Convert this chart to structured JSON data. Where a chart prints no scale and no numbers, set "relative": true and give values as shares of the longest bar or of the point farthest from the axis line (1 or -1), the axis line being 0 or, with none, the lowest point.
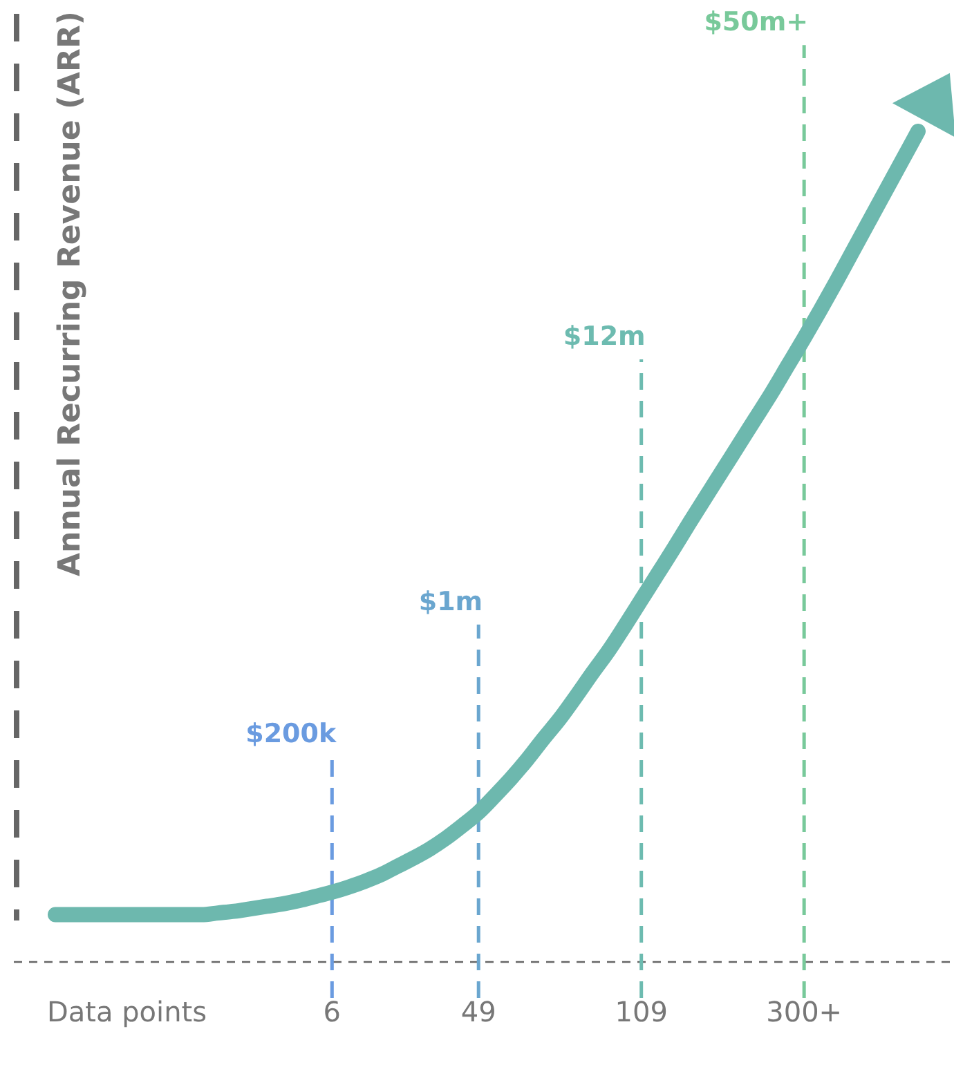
{
  "chart_data": {
    "type": "line",
    "relative": true,
    "xlabel": "Data points",
    "ylabel": "Annual Recurring Revenue (ARR)",
    "categories": [
      null,
      null,
      null,
      null,
      null,
      null,
      null,
      null,
      null,
      null,
      null,
      null,
      null,
      null,
      null,
      null,
      null,
      "6",
      null,
      null,
      null,
      null,
      null,
      null,
      null,
      null,
      "49",
      null,
      null,
      null,
      null,
      null,
      null,
      null,
      null,
      null,
      "109",
      null,
      null,
      null,
      null,
      null,
      null,
      null,
      null,
      null,
      "300+",
      null,
      null,
      null,
      null,
      null,
      null,
      null
    ],
    "series": [
      {
        "color": "#6db8ae",
        "values": [
          0.057,
          0.057,
          0.057,
          0.057,
          0.057,
          0.057,
          0.057,
          0.057,
          0.057,
          0.057,
          0.059,
          0.061,
          0.064,
          0.067,
          0.07,
          0.074,
          0.079,
          0.084,
          0.09,
          0.097,
          0.105,
          0.115,
          0.125,
          0.136,
          0.149,
          0.164,
          0.18,
          0.2,
          0.221,
          0.244,
          0.269,
          0.293,
          0.32,
          0.348,
          0.375,
          0.405,
          0.436,
          0.467,
          0.498,
          0.53,
          0.561,
          0.592,
          0.623,
          0.654,
          0.685,
          0.718,
          0.751,
          0.785,
          0.82,
          0.856,
          0.892,
          0.928,
          0.964,
          1
        ]
      }
    ],
    "ref_lines": [
      {
        "axis": "x",
        "value": "6",
        "label": "$200k",
        "color": "#6a9be0",
        "line_style": "dashed"
      },
      {
        "axis": "x",
        "value": "49",
        "label": "$1m",
        "color": "#6aa6cf",
        "line_style": "dashed"
      },
      {
        "axis": "x",
        "value": "109",
        "label": "$12m",
        "color": "#6dbbb0",
        "line_style": "dashed"
      },
      {
        "axis": "x",
        "value": "300+",
        "label": "$50m+",
        "color": "#78c99a",
        "line_style": "dashed"
      }
    ],
    "legend": false,
    "grid": false,
    "marker": "none",
    "line_style": "solid"
  }
}
